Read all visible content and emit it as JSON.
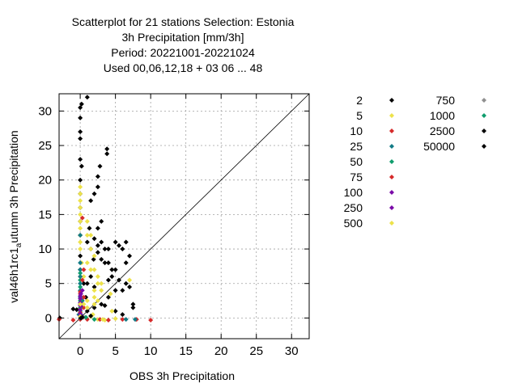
{
  "chart_data": {
    "type": "scatter",
    "title_lines": [
      "Scatterplot for   21 stations Selection: Estonia",
      "3h Precipitation [mm/3h]",
      "Period: 20221001-20221024",
      "Used  00,06,12,18  + 03 06 ... 48"
    ],
    "xlabel": "OBS 3h Precipitation",
    "ylabel_main": "val46h1rc1",
    "ylabel_sub": "a",
    "ylabel_rest": "utumn 3h Precipitation",
    "xlim": [
      -3,
      32.5
    ],
    "ylim": [
      -3,
      32.5
    ],
    "x_ticks": [
      0,
      5,
      10,
      15,
      20,
      25,
      30
    ],
    "y_ticks": [
      0,
      5,
      10,
      15,
      20,
      25,
      30
    ],
    "grid": true,
    "diagonal": true,
    "legend_placement": "right",
    "series": [
      {
        "name": "2",
        "color": "#000000",
        "points": [
          [
            -2.9,
            0
          ],
          [
            0,
            30.5
          ],
          [
            0,
            29
          ],
          [
            0,
            27
          ],
          [
            0,
            26
          ],
          [
            0.2,
            31
          ],
          [
            1,
            32
          ],
          [
            0,
            23
          ],
          [
            -0.5,
            1.2
          ],
          [
            0,
            20
          ],
          [
            0,
            18
          ],
          [
            0,
            16
          ],
          [
            0,
            14
          ],
          [
            0,
            12
          ],
          [
            1.3,
            13
          ],
          [
            0.2,
            22
          ],
          [
            0,
            9
          ],
          [
            0.5,
            5
          ],
          [
            0,
            7
          ],
          [
            1,
            11
          ],
          [
            1.5,
            10
          ],
          [
            1.9,
            8.5
          ],
          [
            3.8,
            24.5
          ],
          [
            3.8,
            23.8
          ],
          [
            2.8,
            22
          ],
          [
            2.5,
            20.5
          ],
          [
            2.5,
            19
          ],
          [
            2,
            18
          ],
          [
            1.5,
            17
          ],
          [
            3,
            14
          ],
          [
            2.5,
            13
          ],
          [
            2,
            11.5
          ],
          [
            2.5,
            10.5
          ],
          [
            3,
            11
          ],
          [
            3.5,
            10
          ],
          [
            2.5,
            9.5
          ],
          [
            3,
            8.5
          ],
          [
            3.5,
            8
          ],
          [
            4,
            10
          ],
          [
            4,
            8
          ],
          [
            4.5,
            7
          ],
          [
            5,
            11
          ],
          [
            5.5,
            10.5
          ],
          [
            6,
            10
          ],
          [
            6.5,
            11
          ],
          [
            7,
            9
          ],
          [
            6.5,
            8
          ],
          [
            5,
            7
          ],
          [
            4.5,
            6
          ],
          [
            5.5,
            5.5
          ],
          [
            4,
            5.5
          ],
          [
            6.5,
            5
          ],
          [
            7,
            4.5
          ],
          [
            5,
            4
          ],
          [
            6,
            4
          ],
          [
            4,
            3
          ],
          [
            3,
            2
          ],
          [
            2,
            1.5
          ],
          [
            1,
            1
          ],
          [
            7.5,
            2
          ],
          [
            7.5,
            1.5
          ],
          [
            5,
            1
          ],
          [
            6,
            0.5
          ],
          [
            1,
            5
          ],
          [
            1.5,
            6
          ],
          [
            2,
            4.5
          ],
          [
            0.8,
            3
          ],
          [
            3.5,
            1.8
          ],
          [
            -1,
            1.3
          ]
        ]
      },
      {
        "name": "5",
        "color": "#ede24a",
        "points": [
          [
            0,
            19
          ],
          [
            0,
            18
          ],
          [
            0,
            17
          ],
          [
            0,
            16
          ],
          [
            0,
            15
          ],
          [
            0,
            14
          ],
          [
            0,
            13
          ],
          [
            0,
            12
          ],
          [
            0,
            11
          ],
          [
            0,
            10
          ],
          [
            0.2,
            8
          ],
          [
            0.5,
            6
          ],
          [
            1,
            14
          ],
          [
            1,
            12
          ],
          [
            1.5,
            12
          ],
          [
            1.5,
            10
          ],
          [
            2,
            9
          ],
          [
            2,
            7
          ],
          [
            2.5,
            6
          ],
          [
            1,
            8
          ],
          [
            1.5,
            7
          ],
          [
            2.5,
            5
          ],
          [
            3,
            5
          ],
          [
            3,
            4
          ],
          [
            2,
            3
          ],
          [
            2.5,
            2.5
          ],
          [
            2,
            2
          ],
          [
            1.8,
            0.5
          ],
          [
            2.5,
            -0.2
          ],
          [
            3.5,
            -0.3
          ],
          [
            4.3,
            3.5
          ],
          [
            4.5,
            1
          ],
          [
            7,
            5.5
          ],
          [
            5,
            -0.1
          ],
          [
            1,
            2.5
          ],
          [
            2,
            4
          ]
        ]
      },
      {
        "name": "10",
        "color": "#d62a2a",
        "points": [
          [
            -3,
            -0.2
          ],
          [
            -1,
            -0.3
          ],
          [
            0,
            -0.2
          ],
          [
            0,
            1.4
          ],
          [
            0,
            3.5
          ],
          [
            0,
            6
          ],
          [
            0.5,
            1.5
          ],
          [
            0.5,
            3
          ],
          [
            0.3,
            14.5
          ],
          [
            4,
            -0.3
          ],
          [
            6,
            -0.2
          ],
          [
            8,
            -0.2
          ],
          [
            10,
            -0.3
          ],
          [
            1,
            -0.2
          ]
        ]
      },
      {
        "name": "25",
        "color": "#127b86",
        "points": [
          [
            0,
            0
          ],
          [
            0,
            1
          ],
          [
            0,
            2
          ],
          [
            0,
            3
          ],
          [
            0,
            4
          ],
          [
            0,
            5
          ],
          [
            0,
            6
          ],
          [
            0,
            7
          ],
          [
            0,
            8
          ],
          [
            0,
            12
          ],
          [
            -0.2,
            0.5
          ],
          [
            0.3,
            2.5
          ],
          [
            6.5,
            -0.2
          ],
          [
            7.8,
            -0.2
          ]
        ]
      },
      {
        "name": "50",
        "color": "#109d6d",
        "points": [
          [
            0,
            1.5
          ],
          [
            0,
            2.5
          ],
          [
            0,
            4.5
          ],
          [
            0,
            5.5
          ],
          [
            0,
            6.5
          ],
          [
            0.2,
            0.4
          ],
          [
            2,
            -0.2
          ]
        ]
      },
      {
        "name": "75",
        "color": "#d62a2a",
        "points": [
          [
            0,
            0.8
          ],
          [
            0,
            3.8
          ],
          [
            0.3,
            5.5
          ],
          [
            0.5,
            7
          ],
          [
            2.8,
            -0.2
          ]
        ]
      },
      {
        "name": "100",
        "color": "#7a0aa8",
        "points": [
          [
            0,
            0.3
          ],
          [
            0,
            1.2
          ],
          [
            0,
            2.2
          ],
          [
            0,
            3.2
          ],
          [
            0.2,
            1.8
          ],
          [
            0.3,
            4
          ]
        ]
      },
      {
        "name": "250",
        "color": "#7a0aa8",
        "points": [
          [
            0,
            0.6
          ],
          [
            0,
            1.8
          ],
          [
            0,
            2.8
          ],
          [
            0.1,
            3.5
          ],
          [
            0.4,
            0.2
          ]
        ]
      },
      {
        "name": "500",
        "color": "#ede24a",
        "points": [
          [
            0,
            0.2
          ],
          [
            0,
            2
          ],
          [
            0.5,
            2
          ],
          [
            1,
            1.5
          ],
          [
            1.5,
            0.2
          ],
          [
            3.2,
            -0.2
          ]
        ]
      },
      {
        "name": "750",
        "color": "#909090",
        "points": [
          [
            0.5,
            0.1
          ]
        ]
      },
      {
        "name": "1000",
        "color": "#109d6d",
        "points": [
          [
            0.8,
            0.1
          ]
        ]
      },
      {
        "name": "2500",
        "color": "#000000",
        "points": [
          [
            0.3,
            0.1
          ],
          [
            1.5,
            0.3
          ]
        ]
      },
      {
        "name": "50000",
        "color": "#000000",
        "points": [
          [
            0.1,
            0
          ]
        ]
      }
    ]
  }
}
